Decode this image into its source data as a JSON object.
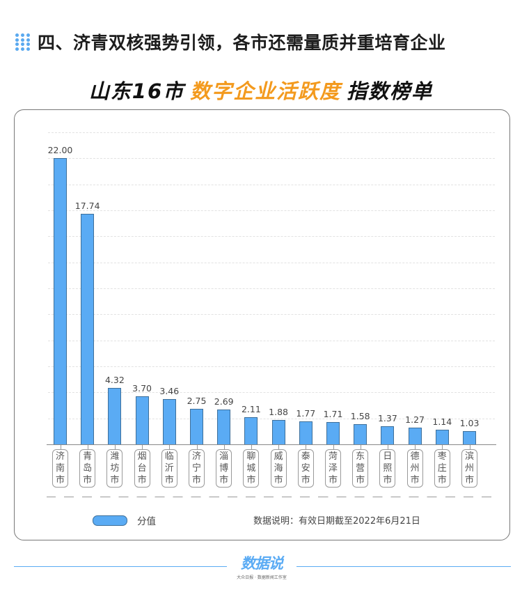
{
  "header": {
    "icon": "dot-grid-icon",
    "title": "四、济青双核强势引领，各市还需量质并重培育企业"
  },
  "subtitle": {
    "part1": "山东16市",
    "part2": "数字企业活跃度",
    "part3": "指数榜单",
    "highlight_color": "#f39a1e"
  },
  "legend": {
    "label": "分值",
    "color": "#5aabf4"
  },
  "note": "数据说明：有效日期截至2022年6月21日",
  "footer": {
    "logo": "数据说",
    "tagline": "大众日报 · 数据新闻工作室"
  },
  "chart_data": {
    "type": "bar",
    "title": "山东16市数字企业活跃度指数榜单",
    "xlabel": "",
    "ylabel": "",
    "ylim": [
      0,
      24
    ],
    "grid": true,
    "legend_position": "bottom-left",
    "categories": [
      "济南市",
      "青岛市",
      "潍坊市",
      "烟台市",
      "临沂市",
      "济宁市",
      "淄博市",
      "聊城市",
      "威海市",
      "泰安市",
      "菏泽市",
      "东营市",
      "日照市",
      "德州市",
      "枣庄市",
      "滨州市"
    ],
    "series": [
      {
        "name": "分值",
        "color": "#5aabf4",
        "values": [
          22.0,
          17.74,
          4.32,
          3.7,
          3.46,
          2.75,
          2.69,
          2.11,
          1.88,
          1.77,
          1.71,
          1.58,
          1.37,
          1.27,
          1.14,
          1.03
        ],
        "labels": [
          "22.00",
          "17.74",
          "4.32",
          "3.70",
          "3.46",
          "2.75",
          "2.69",
          "2.11",
          "1.88",
          "1.77",
          "1.71",
          "1.58",
          "1.37",
          "1.27",
          "1.14",
          "1.03"
        ]
      }
    ]
  }
}
